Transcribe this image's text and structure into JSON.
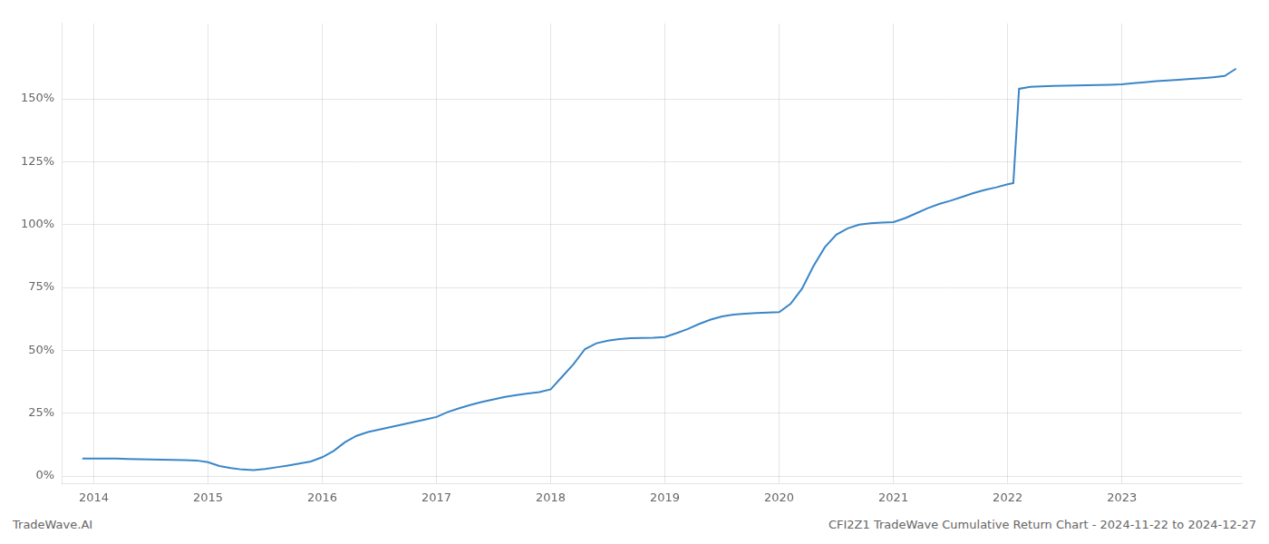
{
  "chart_data": {
    "type": "line",
    "annotations": [
      "TradeWave.AI",
      "CFI2Z1 TradeWave Cumulative Return Chart - 2024-11-22 to 2024-12-27"
    ],
    "x": [
      2013.9,
      2014.0,
      2014.1,
      2014.2,
      2014.3,
      2014.4,
      2014.5,
      2014.6,
      2014.7,
      2014.8,
      2014.9,
      2015.0,
      2015.1,
      2015.2,
      2015.3,
      2015.4,
      2015.5,
      2015.6,
      2015.7,
      2015.8,
      2015.9,
      2016.0,
      2016.1,
      2016.2,
      2016.3,
      2016.4,
      2016.5,
      2016.6,
      2016.7,
      2016.8,
      2016.9,
      2017.0,
      2017.1,
      2017.2,
      2017.3,
      2017.4,
      2017.5,
      2017.6,
      2017.7,
      2017.8,
      2017.9,
      2018.0,
      2018.1,
      2018.2,
      2018.3,
      2018.4,
      2018.5,
      2018.6,
      2018.7,
      2018.8,
      2018.9,
      2019.0,
      2019.1,
      2019.2,
      2019.3,
      2019.4,
      2019.5,
      2019.6,
      2019.7,
      2019.8,
      2019.9,
      2020.0,
      2020.1,
      2020.2,
      2020.3,
      2020.4,
      2020.5,
      2020.6,
      2020.7,
      2020.8,
      2020.9,
      2021.0,
      2021.1,
      2021.2,
      2021.3,
      2021.4,
      2021.5,
      2021.6,
      2021.7,
      2021.8,
      2021.9,
      2022.0,
      2022.05,
      2022.1,
      2022.2,
      2022.3,
      2022.4,
      2022.5,
      2022.6,
      2022.7,
      2022.8,
      2022.9,
      2023.0,
      2023.1,
      2023.2,
      2023.3,
      2023.4,
      2023.5,
      2023.6,
      2023.7,
      2023.8,
      2023.9,
      2024.0
    ],
    "values": [
      0.07,
      0.07,
      0.07,
      0.07,
      0.068,
      0.067,
      0.066,
      0.065,
      0.064,
      0.063,
      0.062,
      0.055,
      0.04,
      0.032,
      0.026,
      0.024,
      0.028,
      0.035,
      0.042,
      0.05,
      0.058,
      0.075,
      0.1,
      0.135,
      0.16,
      0.175,
      0.185,
      0.195,
      0.205,
      0.215,
      0.225,
      0.235,
      0.255,
      0.27,
      0.283,
      0.295,
      0.305,
      0.315,
      0.322,
      0.328,
      0.334,
      0.345,
      0.395,
      0.445,
      0.505,
      0.528,
      0.538,
      0.545,
      0.548,
      0.549,
      0.55,
      0.553,
      0.568,
      0.585,
      0.605,
      0.622,
      0.635,
      0.642,
      0.646,
      0.648,
      0.65,
      0.652,
      0.685,
      0.745,
      0.835,
      0.91,
      0.96,
      0.985,
      1.0,
      1.005,
      1.008,
      1.01,
      1.025,
      1.045,
      1.065,
      1.082,
      1.095,
      1.11,
      1.125,
      1.138,
      1.148,
      1.16,
      1.165,
      1.54,
      1.548,
      1.55,
      1.551,
      1.552,
      1.553,
      1.554,
      1.555,
      1.556,
      1.558,
      1.562,
      1.566,
      1.57,
      1.573,
      1.576,
      1.579,
      1.582,
      1.586,
      1.591,
      1.62
    ],
    "color": "#3a86c8",
    "xlim": [
      2013.72,
      2024.05
    ],
    "ylim": [
      -0.03,
      1.8
    ],
    "xticks": [
      2014,
      2015,
      2016,
      2017,
      2018,
      2019,
      2020,
      2021,
      2022,
      2023
    ],
    "yticks": [
      {
        "value": 0,
        "label": "0%"
      },
      {
        "value": 0.25,
        "label": "25%"
      },
      {
        "value": 0.5,
        "label": "50%"
      },
      {
        "value": 0.75,
        "label": "75%"
      },
      {
        "value": 1.0,
        "label": "100%"
      },
      {
        "value": 1.25,
        "label": "125%"
      },
      {
        "value": 1.5,
        "label": "150%"
      }
    ],
    "grid": true
  }
}
